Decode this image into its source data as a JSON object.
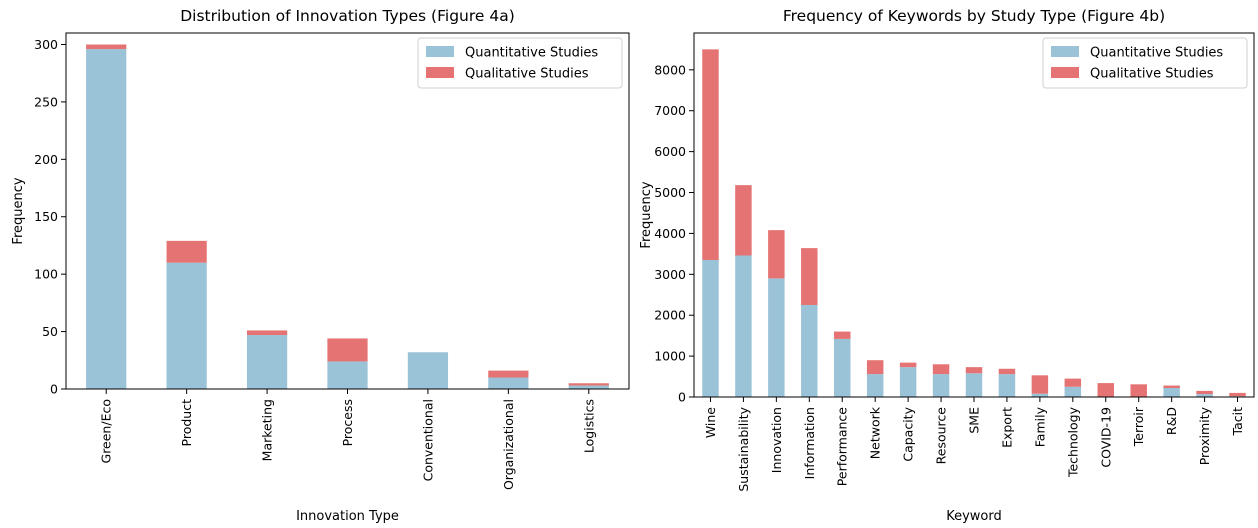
{
  "colors": {
    "quantitative": "#9ac3d8",
    "qualitative": "#e57373"
  },
  "chart_data": [
    {
      "type": "bar",
      "stacked": true,
      "title": "Distribution of Innovation Types (Figure 4a)",
      "xlabel": "Innovation Type",
      "ylabel": "Frequency",
      "ylim": [
        0,
        310
      ],
      "yticks": [
        0,
        50,
        100,
        150,
        200,
        250,
        300
      ],
      "legend": "top-right",
      "categories": [
        "Green/Eco",
        "Product",
        "Marketing",
        "Process",
        "Conventional",
        "Organizational",
        "Logistics"
      ],
      "series": [
        {
          "name": "Quantitative Studies",
          "values": [
            296,
            110,
            47,
            24,
            32,
            10,
            3
          ]
        },
        {
          "name": "Qualitative Studies",
          "values": [
            4,
            19,
            4,
            20,
            0,
            6,
            2
          ]
        }
      ]
    },
    {
      "type": "bar",
      "stacked": true,
      "title": "Frequency of Keywords by Study Type (Figure 4b)",
      "xlabel": "Keyword",
      "ylabel": "Frequency",
      "ylim": [
        0,
        8900
      ],
      "yticks": [
        0,
        1000,
        2000,
        3000,
        4000,
        5000,
        6000,
        7000,
        8000
      ],
      "legend": "top-right",
      "categories": [
        "Wine",
        "Sustainability",
        "Innovation",
        "Information",
        "Performance",
        "Network",
        "Capacity",
        "Resource",
        "SME",
        "Export",
        "Family",
        "Technology",
        "COVID-19",
        "Terroir",
        "R&D",
        "Proximity",
        "Tacit"
      ],
      "series": [
        {
          "name": "Quantitative Studies",
          "values": [
            3350,
            3460,
            2900,
            2250,
            1420,
            560,
            730,
            560,
            580,
            560,
            80,
            250,
            0,
            0,
            220,
            70,
            20
          ]
        },
        {
          "name": "Qualitative Studies",
          "values": [
            5150,
            1720,
            1180,
            1390,
            180,
            340,
            110,
            240,
            150,
            130,
            450,
            200,
            340,
            310,
            60,
            80,
            80
          ]
        }
      ]
    }
  ]
}
